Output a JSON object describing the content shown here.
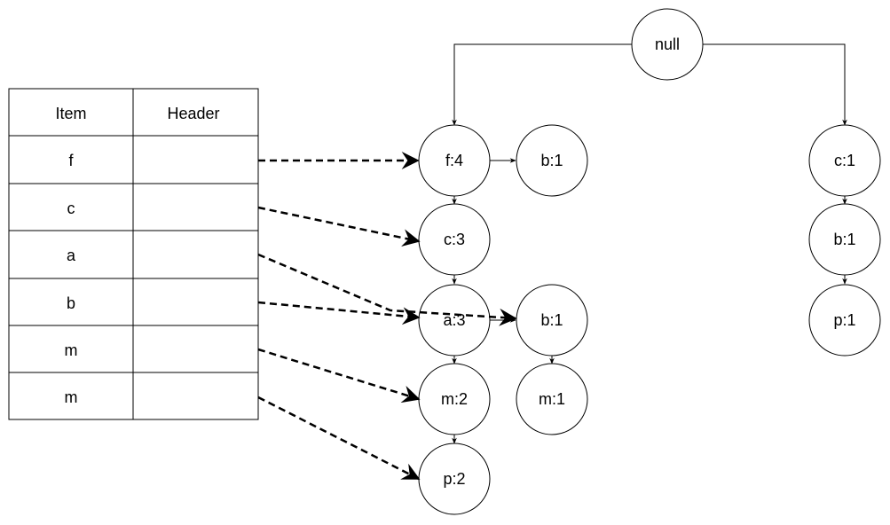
{
  "table": {
    "headers": [
      "Item",
      "Header"
    ],
    "rows": [
      {
        "item": "f",
        "header": ""
      },
      {
        "item": "c",
        "header": ""
      },
      {
        "item": "a",
        "header": ""
      },
      {
        "item": "b",
        "header": ""
      },
      {
        "item": "m",
        "header": ""
      },
      {
        "item": "m",
        "header": ""
      }
    ]
  },
  "tree": {
    "root": "null",
    "nodes": {
      "f4": "f:4",
      "c3": "c:3",
      "a3": "a:3",
      "m2": "m:2",
      "p2": "p:2",
      "b1_top": "b:1",
      "b1_mid": "b:1",
      "m1": "m:1",
      "c1": "c:1",
      "b1_right": "b:1",
      "p1": "p:1"
    }
  },
  "colors": {
    "stroke": "#000000",
    "fill": "#ffffff"
  }
}
